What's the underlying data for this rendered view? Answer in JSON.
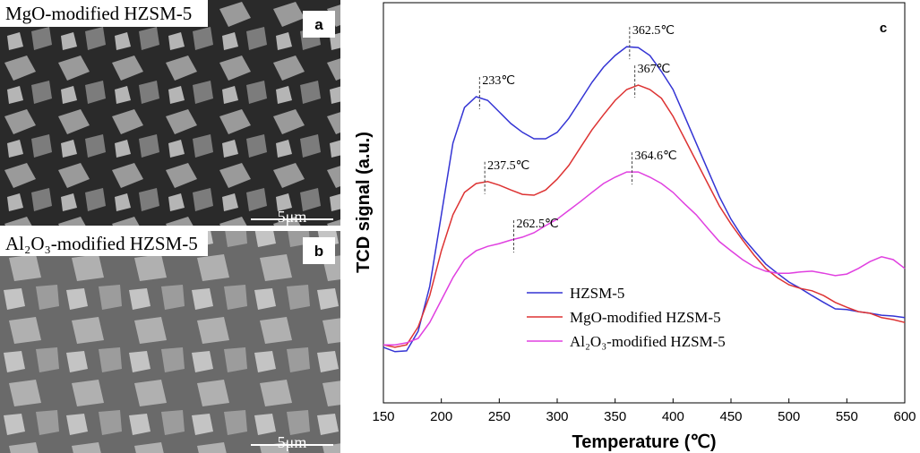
{
  "images": [
    {
      "caption": "MgO-modified HZSM-5",
      "letter": "a",
      "scale": "5μm"
    },
    {
      "caption": "Al₂O₃-modified HZSM-5",
      "letter": "b",
      "scale": "5μm"
    }
  ],
  "chart_data": {
    "type": "line",
    "panel_label": "c",
    "xlabel": "Temperature (℃)",
    "ylabel": "TCD signal (a.u.)",
    "x": [
      150,
      160,
      170,
      180,
      190,
      200,
      210,
      220,
      230,
      240,
      250,
      260,
      270,
      280,
      290,
      300,
      310,
      320,
      330,
      340,
      350,
      360,
      370,
      380,
      390,
      400,
      410,
      420,
      430,
      440,
      450,
      460,
      470,
      480,
      490,
      500,
      510,
      520,
      530,
      540,
      550,
      560,
      570,
      580,
      590,
      600
    ],
    "series": [
      {
        "name": "HZSM-5",
        "color": "#3434d4",
        "values": [
          13.9,
          12.8,
          13.0,
          17.9,
          29.1,
          47.0,
          64.9,
          73.8,
          76.5,
          75.6,
          72.7,
          69.8,
          67.6,
          66.0,
          66.0,
          67.6,
          71.1,
          75.6,
          80.1,
          83.9,
          86.8,
          89.0,
          88.8,
          86.8,
          82.8,
          78.3,
          71.6,
          64.9,
          58.2,
          51.5,
          45.9,
          41.4,
          38.0,
          34.7,
          32.4,
          30.2,
          28.6,
          26.8,
          25.1,
          23.5,
          23.3,
          22.8,
          22.4,
          21.9,
          21.7,
          21.3
        ]
      },
      {
        "name": "MgO-modified HZSM-5",
        "color": "#dd3333",
        "values": [
          14.5,
          13.9,
          14.5,
          19.0,
          26.8,
          38.0,
          47.0,
          52.6,
          54.8,
          55.3,
          54.4,
          53.2,
          52.1,
          51.9,
          53.2,
          55.9,
          59.3,
          63.8,
          68.2,
          72.0,
          75.6,
          78.3,
          79.4,
          78.3,
          76.1,
          71.6,
          66.0,
          60.4,
          54.8,
          49.2,
          44.7,
          40.7,
          36.9,
          33.6,
          31.3,
          29.5,
          28.6,
          28.0,
          26.8,
          25.1,
          23.9,
          22.8,
          22.4,
          21.3,
          20.8,
          20.1
        ]
      },
      {
        "name": "Al₂O₃-modified HZSM-5",
        "color": "#e040e0",
        "values": [
          14.5,
          14.5,
          15.0,
          16.1,
          20.1,
          25.7,
          31.3,
          35.8,
          38.0,
          39.1,
          39.8,
          40.7,
          41.4,
          42.5,
          44.3,
          45.9,
          48.1,
          50.3,
          52.6,
          54.8,
          56.4,
          57.7,
          57.7,
          56.4,
          54.8,
          52.6,
          49.7,
          47.0,
          43.6,
          40.3,
          38.0,
          35.8,
          34.0,
          32.9,
          32.4,
          32.4,
          32.7,
          32.9,
          32.4,
          31.8,
          32.2,
          33.6,
          35.3,
          36.5,
          35.8,
          33.6
        ]
      }
    ],
    "annotations": [
      {
        "label": "233℃",
        "x": 233,
        "y": 76.5
      },
      {
        "label": "237.5℃",
        "x": 237.5,
        "y": 55.3
      },
      {
        "label": "262.5℃",
        "x": 262.5,
        "y": 40.7
      },
      {
        "label": "362.5℃",
        "x": 362.5,
        "y": 89.0
      },
      {
        "label": "367℃",
        "x": 367,
        "y": 79.4
      },
      {
        "label": "364.6℃",
        "x": 364.6,
        "y": 57.7
      }
    ],
    "xlim": [
      150,
      600
    ],
    "xticks": [
      150,
      200,
      250,
      300,
      350,
      400,
      450,
      500,
      550,
      600
    ],
    "ylim": [
      0,
      100
    ]
  }
}
